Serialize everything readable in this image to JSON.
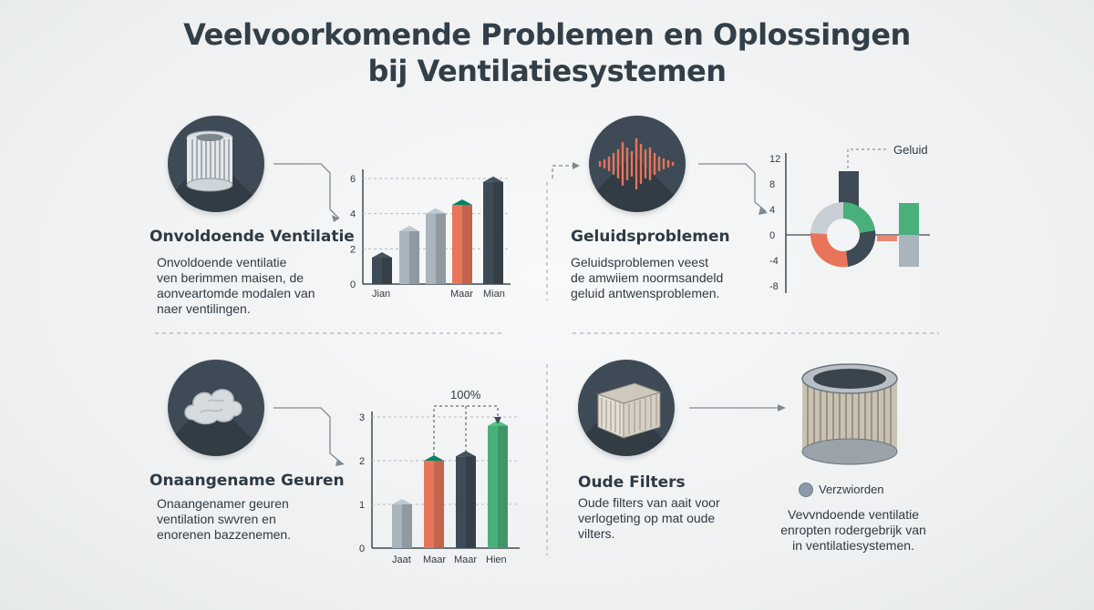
{
  "title": {
    "line1": "Veelvoorkomende Problemen en Oplossingen",
    "line2": "bij Ventilatiesystemen"
  },
  "colors": {
    "dark": "#3e4a55",
    "orange": "#e8745a",
    "grey": "#a9b4bc",
    "green": "#49b07a"
  },
  "sections": {
    "ventilatie": {
      "icon": "air-filter-icon",
      "heading": "Onvoldoende Ventilatie",
      "desc": [
        "Onvoldoende ventilatie",
        "ven berimmen maisen, de",
        "aonveartomde modalen van",
        "naer ventilingen."
      ]
    },
    "geluid": {
      "icon": "sound-wave-icon",
      "heading": "Geluidsproblemen",
      "desc": [
        "Geluidsproblemen veest",
        "de amwiiem noormsandeld",
        "geluid antwensproblemen."
      ]
    },
    "geuren": {
      "icon": "smoke-cloud-icon",
      "heading": "Onaangename Geuren",
      "desc": [
        "Onaangenamer geuren",
        "ventilation swvren en",
        "enorenen bazzenemen."
      ]
    },
    "filters": {
      "icon": "dirty-filter-icon",
      "heading": "Oude Filters",
      "desc": [
        "Oude filters van aait voor",
        "verlogeting op mat oude",
        "vilters."
      ],
      "legend": "Verzwiorden",
      "note": [
        "Vevvndoende ventilatie",
        "enropten rodergebrijk van",
        "in ventilatiesystemen."
      ]
    }
  },
  "chart_data": [
    {
      "type": "bar",
      "yticks": [
        "0",
        "2",
        "4",
        "6"
      ],
      "ylim": [
        0,
        6
      ],
      "xlabels": [
        "Jian",
        "Maar",
        "Mian"
      ],
      "values": [
        1.5,
        3,
        4,
        4.5,
        5.8
      ],
      "colors": [
        "dark",
        "grey",
        "grey",
        "orange",
        "dark"
      ]
    },
    {
      "type": "bar",
      "yticks": [
        "12",
        "8",
        "4",
        "0",
        "-4",
        "-8"
      ],
      "ylim": [
        -8,
        12
      ],
      "series_label": "Geluid",
      "values": [
        10,
        -1,
        5,
        -5
      ],
      "colors": [
        "dark",
        "orange",
        "green",
        "grey"
      ]
    },
    {
      "type": "bar",
      "yticks": [
        "0",
        "1",
        "2",
        "3"
      ],
      "ylim": [
        0,
        3
      ],
      "xlabels": [
        "Jaat",
        "Maar",
        "Maar",
        "Hien"
      ],
      "values": [
        1,
        2,
        2.1,
        2.8
      ],
      "colors": [
        "grey",
        "orange",
        "dark",
        "green"
      ],
      "annotation": "100%"
    }
  ]
}
